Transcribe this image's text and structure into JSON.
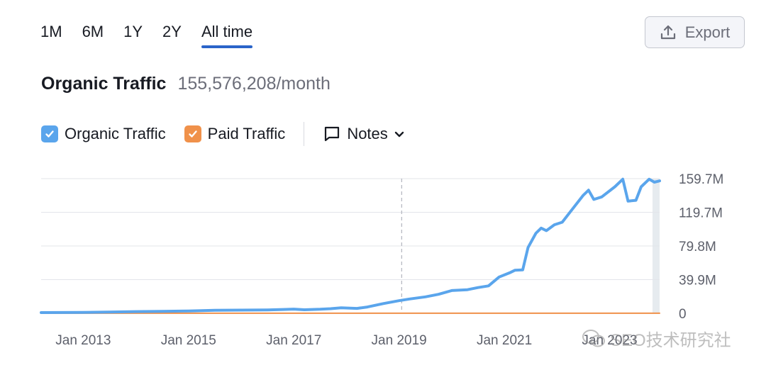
{
  "tabs": [
    {
      "label": "1M",
      "active": false
    },
    {
      "label": "6M",
      "active": false
    },
    {
      "label": "1Y",
      "active": false
    },
    {
      "label": "2Y",
      "active": false
    },
    {
      "label": "All time",
      "active": true
    }
  ],
  "toolbar": {
    "export_label": "Export"
  },
  "headline": {
    "title": "Organic Traffic",
    "value": "155,576,208/month"
  },
  "legend": {
    "organic_label": "Organic Traffic",
    "paid_label": "Paid Traffic",
    "notes_label": "Notes"
  },
  "colors": {
    "organic": "#5aa5ec",
    "paid": "#f0914a",
    "accent": "#2b64c9"
  },
  "watermark": {
    "text": "SEO技术研究社"
  },
  "chart_data": {
    "type": "line",
    "y_ticks": [
      "0",
      "39.9M",
      "79.8M",
      "119.7M",
      "159.7M"
    ],
    "ylim": [
      0,
      159.7
    ],
    "x_ticks": [
      "Jan 2013",
      "Jan 2015",
      "Jan 2017",
      "Jan 2019",
      "Jan 2021",
      "Jan 2023"
    ],
    "xlim": [
      2012.2,
      2023.95
    ],
    "grid": true,
    "marker_x": 2019.05,
    "series": [
      {
        "name": "Organic Traffic",
        "color": "#5aa5ec",
        "points": [
          [
            2012.2,
            0.8
          ],
          [
            2013.0,
            1.0
          ],
          [
            2013.5,
            1.5
          ],
          [
            2014.0,
            2.0
          ],
          [
            2014.5,
            2.3
          ],
          [
            2015.0,
            2.8
          ],
          [
            2015.5,
            3.5
          ],
          [
            2016.0,
            3.8
          ],
          [
            2016.5,
            4.0
          ],
          [
            2016.8,
            4.5
          ],
          [
            2017.0,
            5.0
          ],
          [
            2017.2,
            4.2
          ],
          [
            2017.5,
            4.8
          ],
          [
            2017.7,
            5.5
          ],
          [
            2017.9,
            6.5
          ],
          [
            2018.2,
            5.8
          ],
          [
            2018.4,
            7.5
          ],
          [
            2018.7,
            11.5
          ],
          [
            2019.0,
            15.0
          ],
          [
            2019.2,
            17.0
          ],
          [
            2019.5,
            19.5
          ],
          [
            2019.75,
            22.5
          ],
          [
            2020.0,
            27.0
          ],
          [
            2020.3,
            28.0
          ],
          [
            2020.5,
            30.5
          ],
          [
            2020.7,
            32.5
          ],
          [
            2020.9,
            43.0
          ],
          [
            2021.1,
            48.0
          ],
          [
            2021.2,
            51.0
          ],
          [
            2021.35,
            51.5
          ],
          [
            2021.45,
            78.0
          ],
          [
            2021.6,
            95.0
          ],
          [
            2021.7,
            101.0
          ],
          [
            2021.8,
            98.0
          ],
          [
            2021.95,
            105.0
          ],
          [
            2022.1,
            108.0
          ],
          [
            2022.25,
            120.0
          ],
          [
            2022.5,
            140.0
          ],
          [
            2022.6,
            146.0
          ],
          [
            2022.7,
            135.0
          ],
          [
            2022.85,
            138.0
          ],
          [
            2023.1,
            150.0
          ],
          [
            2023.25,
            159.0
          ],
          [
            2023.35,
            133.0
          ],
          [
            2023.5,
            134.0
          ],
          [
            2023.6,
            150.0
          ],
          [
            2023.75,
            159.0
          ],
          [
            2023.85,
            155.5
          ],
          [
            2023.95,
            157.0
          ]
        ]
      },
      {
        "name": "Paid Traffic",
        "color": "#f0914a",
        "points": [
          [
            2012.2,
            0.1
          ],
          [
            2023.95,
            0.1
          ]
        ]
      }
    ]
  }
}
